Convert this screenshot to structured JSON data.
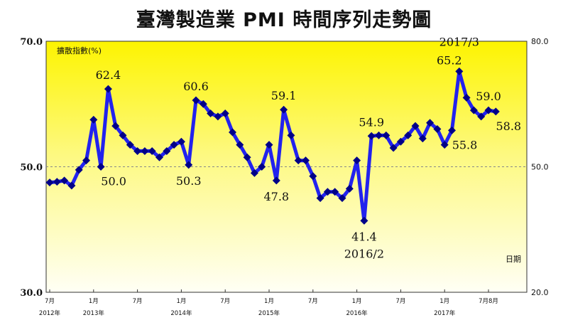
{
  "chart_data": {
    "type": "line",
    "title": "臺灣製造業 PMI 時間序列走勢圖",
    "series_label": "擴散指數(%)",
    "date_axis_label": "日期",
    "left_axis": {
      "ylim": [
        30.0,
        70.0
      ],
      "ticks": [
        "70.0",
        "50.0",
        "30.0"
      ]
    },
    "right_axis": {
      "ylim": [
        20.0,
        80.0
      ],
      "ticks": [
        "80.0",
        "50.0",
        "20.0"
      ]
    },
    "reference_line": 50.0,
    "colors": {
      "line": "#2222ee",
      "marker": "#000088",
      "bg_top": "#fdf400",
      "bg_bottom": "#fffff5"
    },
    "x_ticks": [
      {
        "i": 0,
        "month": "7月",
        "year": "2012年"
      },
      {
        "i": 6,
        "month": "1月",
        "year": "2013年"
      },
      {
        "i": 12,
        "month": "7月",
        "year": ""
      },
      {
        "i": 18,
        "month": "1月",
        "year": "2014年"
      },
      {
        "i": 24,
        "month": "7月",
        "year": ""
      },
      {
        "i": 30,
        "month": "1月",
        "year": "2015年"
      },
      {
        "i": 36,
        "month": "7月",
        "year": ""
      },
      {
        "i": 42,
        "month": "1月",
        "year": "2016年"
      },
      {
        "i": 48,
        "month": "7月",
        "year": ""
      },
      {
        "i": 54,
        "month": "1月",
        "year": "2017年"
      },
      {
        "i": 60,
        "month": "7月8月",
        "year": ""
      }
    ],
    "values": [
      47.5,
      47.6,
      47.8,
      47.0,
      49.5,
      51.0,
      57.5,
      50.0,
      62.4,
      56.5,
      55.0,
      53.5,
      52.5,
      52.5,
      52.5,
      51.5,
      52.5,
      53.5,
      54.0,
      50.3,
      60.6,
      60.0,
      58.5,
      58.0,
      58.5,
      55.5,
      53.5,
      51.5,
      49.0,
      50.0,
      53.5,
      47.8,
      59.1,
      55.0,
      51.0,
      51.0,
      48.5,
      45.0,
      46.0,
      46.0,
      45.0,
      46.5,
      51.0,
      41.4,
      54.9,
      55.0,
      55.0,
      53.0,
      54.0,
      55.0,
      56.5,
      54.5,
      57.0,
      56.0,
      53.5,
      55.8,
      65.2,
      61.0,
      59.0,
      58.0,
      59.0,
      58.8
    ],
    "annotations": [
      {
        "i": 8,
        "text": "62.4",
        "pos": "above"
      },
      {
        "i": 7,
        "text": "50.0",
        "pos": "below-right"
      },
      {
        "i": 20,
        "text": "60.6",
        "pos": "above"
      },
      {
        "i": 19,
        "text": "50.3",
        "pos": "below"
      },
      {
        "i": 32,
        "text": "59.1",
        "pos": "above"
      },
      {
        "i": 31,
        "text": "47.8",
        "pos": "below"
      },
      {
        "i": 43,
        "text": "41.4",
        "pos": "below"
      },
      {
        "i": 43,
        "text": "2016/2",
        "pos": "below2"
      },
      {
        "i": 44,
        "text": "54.9",
        "pos": "above"
      },
      {
        "i": 56,
        "text": "2017/3",
        "pos": "above2"
      },
      {
        "i": 56,
        "text": "65.2",
        "pos": "above-left"
      },
      {
        "i": 55,
        "text": "55.8",
        "pos": "below-right"
      },
      {
        "i": 60,
        "text": "59.0",
        "pos": "above"
      },
      {
        "i": 61,
        "text": "58.8",
        "pos": "below-right"
      }
    ]
  }
}
